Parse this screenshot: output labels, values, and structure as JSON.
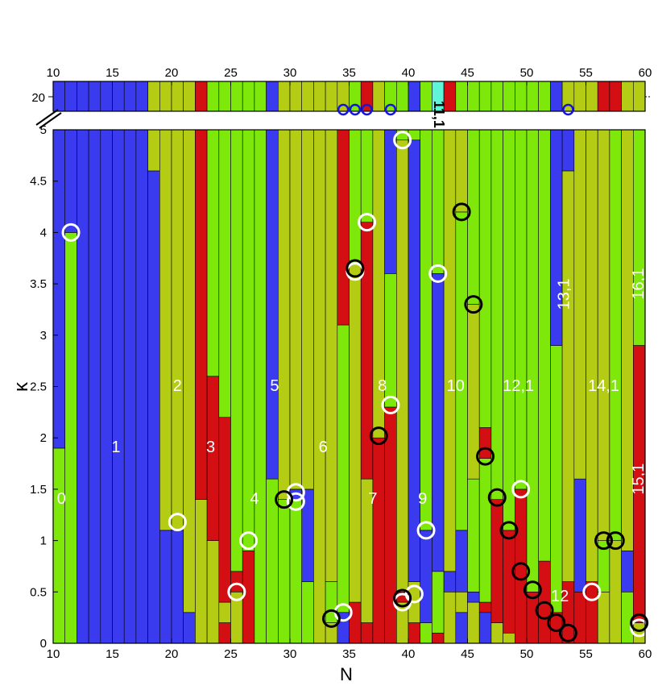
{
  "chart_data": {
    "type": "bar",
    "xlabel": "N",
    "ylabel": "κ",
    "xlim": [
      10,
      60
    ],
    "ylim": [
      0,
      5
    ],
    "top_strip_value": "20",
    "xticks": [
      "10",
      "15",
      "20",
      "25",
      "30",
      "35",
      "40",
      "45",
      "50",
      "55",
      "60"
    ],
    "yticks": [
      "0",
      "0.5",
      "1",
      "1.5",
      "2",
      "2.5",
      "3",
      "3.5",
      "4",
      "4.5",
      "5"
    ],
    "colors": {
      "blue": "#3a3aef",
      "green": "#7ee80b",
      "olive": "#b4cd14",
      "red": "#d40f14",
      "cyan": "#5ff5d8"
    },
    "bars": [
      {
        "N": 11,
        "segs": [
          [
            "green",
            1.9
          ],
          [
            "blue",
            5
          ]
        ]
      },
      {
        "N": 12,
        "segs": [
          [
            "green",
            4.0
          ],
          [
            "blue",
            5
          ]
        ]
      },
      {
        "N": 13,
        "segs": [
          [
            "blue",
            5
          ]
        ]
      },
      {
        "N": 14,
        "segs": [
          [
            "blue",
            5
          ]
        ]
      },
      {
        "N": 15,
        "segs": [
          [
            "blue",
            5
          ]
        ]
      },
      {
        "N": 16,
        "segs": [
          [
            "blue",
            5
          ]
        ]
      },
      {
        "N": 17,
        "segs": [
          [
            "blue",
            5
          ]
        ]
      },
      {
        "N": 18,
        "segs": [
          [
            "blue",
            5
          ]
        ]
      },
      {
        "N": 19,
        "segs": [
          [
            "blue",
            4.6
          ],
          [
            "olive",
            5
          ]
        ]
      },
      {
        "N": 20,
        "segs": [
          [
            "blue",
            1.1
          ],
          [
            "olive",
            5
          ]
        ]
      },
      {
        "N": 21,
        "segs": [
          [
            "blue",
            1.1
          ],
          [
            "olive",
            5
          ]
        ]
      },
      {
        "N": 22,
        "segs": [
          [
            "blue",
            0.3
          ],
          [
            "olive",
            5
          ]
        ]
      },
      {
        "N": 23,
        "segs": [
          [
            "olive",
            1.4
          ],
          [
            "red",
            5
          ]
        ]
      },
      {
        "N": 24,
        "segs": [
          [
            "olive",
            1.0
          ],
          [
            "red",
            2.6
          ],
          [
            "green",
            5
          ]
        ]
      },
      {
        "N": 25,
        "segs": [
          [
            "red",
            0.2
          ],
          [
            "olive",
            0.4
          ],
          [
            "red",
            2.2
          ],
          [
            "green",
            5
          ]
        ]
      },
      {
        "N": 26,
        "segs": [
          [
            "olive",
            0.5
          ],
          [
            "red",
            0.7
          ],
          [
            "green",
            5
          ]
        ]
      },
      {
        "N": 27,
        "segs": [
          [
            "red",
            0.9
          ],
          [
            "green",
            5
          ]
        ]
      },
      {
        "N": 28,
        "segs": [
          [
            "green",
            5
          ]
        ]
      },
      {
        "N": 29,
        "segs": [
          [
            "green",
            1.6
          ],
          [
            "blue",
            5
          ]
        ]
      },
      {
        "N": 30,
        "segs": [
          [
            "green",
            1.4
          ],
          [
            "olive",
            5
          ]
        ]
      },
      {
        "N": 31,
        "segs": [
          [
            "green",
            1.4
          ],
          [
            "blue",
            1.5
          ],
          [
            "olive",
            5
          ]
        ]
      },
      {
        "N": 32,
        "segs": [
          [
            "green",
            0.6
          ],
          [
            "blue",
            1.5
          ],
          [
            "olive",
            5
          ]
        ]
      },
      {
        "N": 33,
        "segs": [
          [
            "olive",
            5
          ]
        ]
      },
      {
        "N": 34,
        "segs": [
          [
            "olive",
            0.2
          ],
          [
            "green",
            0.6
          ],
          [
            "olive",
            5
          ]
        ]
      },
      {
        "N": 35,
        "segs": [
          [
            "blue",
            0.3
          ],
          [
            "green",
            3.1
          ],
          [
            "red",
            5
          ]
        ]
      },
      {
        "N": 36,
        "segs": [
          [
            "red",
            0.4
          ],
          [
            "olive",
            3.7
          ],
          [
            "green",
            5
          ]
        ]
      },
      {
        "N": 37,
        "segs": [
          [
            "red",
            0.2
          ],
          [
            "olive",
            1.6
          ],
          [
            "red",
            4.1
          ],
          [
            "green",
            5
          ]
        ]
      },
      {
        "N": 38,
        "segs": [
          [
            "red",
            2.0
          ],
          [
            "olive",
            5
          ]
        ]
      },
      {
        "N": 39,
        "segs": [
          [
            "red",
            2.3
          ],
          [
            "green",
            3.6
          ],
          [
            "blue",
            5
          ]
        ]
      },
      {
        "N": 40,
        "segs": [
          [
            "olive",
            0.4
          ],
          [
            "red",
            0.5
          ],
          [
            "olive",
            4.9
          ],
          [
            "green",
            5
          ]
        ]
      },
      {
        "N": 41,
        "segs": [
          [
            "red",
            0.2
          ],
          [
            "olive",
            0.6
          ],
          [
            "blue",
            4.9
          ],
          [
            "green",
            5
          ]
        ]
      },
      {
        "N": 42,
        "segs": [
          [
            "green",
            0.2
          ],
          [
            "blue",
            1.1
          ],
          [
            "green",
            5
          ]
        ]
      },
      {
        "N": 43,
        "segs": [
          [
            "red",
            0.1
          ],
          [
            "green",
            0.7
          ],
          [
            "blue",
            3.6
          ],
          [
            "green",
            5
          ]
        ]
      },
      {
        "N": 44,
        "segs": [
          [
            "olive",
            0.5
          ],
          [
            "blue",
            0.7
          ],
          [
            "olive",
            5
          ]
        ]
      },
      {
        "N": 45,
        "segs": [
          [
            "blue",
            0.3
          ],
          [
            "olive",
            0.5
          ],
          [
            "blue",
            1.1
          ],
          [
            "green",
            4.2
          ],
          [
            "olive",
            5
          ]
        ]
      },
      {
        "N": 46,
        "segs": [
          [
            "olive",
            0.4
          ],
          [
            "blue",
            0.5
          ],
          [
            "green",
            1.6
          ],
          [
            "olive",
            3.3
          ],
          [
            "red",
            3.3
          ],
          [
            "green",
            5
          ]
        ]
      },
      {
        "N": 47,
        "segs": [
          [
            "blue",
            0.3
          ],
          [
            "red",
            0.4
          ],
          [
            "green",
            1.8
          ],
          [
            "red",
            2.1
          ],
          [
            "green",
            5
          ]
        ]
      },
      {
        "N": 48,
        "segs": [
          [
            "olive",
            0.2
          ],
          [
            "red",
            1.4
          ],
          [
            "green",
            5
          ]
        ]
      },
      {
        "N": 49,
        "segs": [
          [
            "olive",
            0.1
          ],
          [
            "red",
            1.1
          ],
          [
            "green",
            5
          ]
        ]
      },
      {
        "N": 50,
        "segs": [
          [
            "red",
            1.5
          ],
          [
            "green",
            5
          ]
        ]
      },
      {
        "N": 51,
        "segs": [
          [
            "red",
            0.5
          ],
          [
            "green",
            5
          ]
        ]
      },
      {
        "N": 52,
        "segs": [
          [
            "red",
            0.8
          ],
          [
            "green",
            5
          ]
        ]
      },
      {
        "N": 53,
        "segs": [
          [
            "red",
            0.3
          ],
          [
            "green",
            2.9
          ],
          [
            "blue",
            5
          ]
        ]
      },
      {
        "N": 54,
        "segs": [
          [
            "red",
            0.6
          ],
          [
            "olive",
            4.6
          ],
          [
            "blue",
            5
          ]
        ]
      },
      {
        "N": 55,
        "segs": [
          [
            "red",
            0.5
          ],
          [
            "blue",
            1.6
          ],
          [
            "olive",
            5
          ]
        ]
      },
      {
        "N": 56,
        "segs": [
          [
            "red",
            0.6
          ],
          [
            "olive",
            5
          ]
        ]
      },
      {
        "N": 57,
        "segs": [
          [
            "olive",
            0.5
          ],
          [
            "green",
            1.0
          ],
          [
            "olive",
            5
          ]
        ]
      },
      {
        "N": 58,
        "segs": [
          [
            "olive",
            1.0
          ],
          [
            "green",
            5
          ]
        ]
      },
      {
        "N": 59,
        "segs": [
          [
            "green",
            0.5
          ],
          [
            "blue",
            0.9
          ],
          [
            "olive",
            5
          ]
        ]
      },
      {
        "N": 60,
        "segs": [
          [
            "olive",
            0.2
          ],
          [
            "red",
            2.9
          ],
          [
            "green",
            5
          ]
        ]
      }
    ],
    "top_strip": [
      {
        "N": 11,
        "c": "blue"
      },
      {
        "N": 12,
        "c": "blue"
      },
      {
        "N": 13,
        "c": "blue"
      },
      {
        "N": 14,
        "c": "blue"
      },
      {
        "N": 15,
        "c": "blue"
      },
      {
        "N": 16,
        "c": "blue"
      },
      {
        "N": 17,
        "c": "blue"
      },
      {
        "N": 18,
        "c": "blue"
      },
      {
        "N": 19,
        "c": "olive"
      },
      {
        "N": 20,
        "c": "olive"
      },
      {
        "N": 21,
        "c": "olive"
      },
      {
        "N": 22,
        "c": "olive"
      },
      {
        "N": 23,
        "c": "red"
      },
      {
        "N": 24,
        "c": "green"
      },
      {
        "N": 25,
        "c": "green"
      },
      {
        "N": 26,
        "c": "green"
      },
      {
        "N": 27,
        "c": "green"
      },
      {
        "N": 28,
        "c": "green"
      },
      {
        "N": 29,
        "c": "blue"
      },
      {
        "N": 30,
        "c": "olive"
      },
      {
        "N": 31,
        "c": "olive"
      },
      {
        "N": 32,
        "c": "olive"
      },
      {
        "N": 33,
        "c": "olive"
      },
      {
        "N": 34,
        "c": "olive"
      },
      {
        "N": 35,
        "c": "olive"
      },
      {
        "N": 36,
        "c": "green"
      },
      {
        "N": 37,
        "c": "red"
      },
      {
        "N": 38,
        "c": "olive"
      },
      {
        "N": 39,
        "c": "green"
      },
      {
        "N": 40,
        "c": "green"
      },
      {
        "N": 41,
        "c": "blue"
      },
      {
        "N": 42,
        "c": "green"
      },
      {
        "N": 43,
        "c": "cyan"
      },
      {
        "N": 44,
        "c": "red"
      },
      {
        "N": 45,
        "c": "green"
      },
      {
        "N": 46,
        "c": "green"
      },
      {
        "N": 47,
        "c": "green"
      },
      {
        "N": 48,
        "c": "green"
      },
      {
        "N": 49,
        "c": "green"
      },
      {
        "N": 50,
        "c": "green"
      },
      {
        "N": 51,
        "c": "green"
      },
      {
        "N": 52,
        "c": "green"
      },
      {
        "N": 53,
        "c": "blue"
      },
      {
        "N": 54,
        "c": "olive"
      },
      {
        "N": 55,
        "c": "olive"
      },
      {
        "N": 56,
        "c": "olive"
      },
      {
        "N": 57,
        "c": "red"
      },
      {
        "N": 58,
        "c": "red"
      },
      {
        "N": 59,
        "c": "olive"
      },
      {
        "N": 60,
        "c": "olive"
      }
    ],
    "strip_markers": [
      35,
      36,
      37,
      39,
      54
    ],
    "region_labels": [
      {
        "text": "0",
        "N": 11.2,
        "k": 1.4,
        "color": "#ffffff"
      },
      {
        "text": "1",
        "N": 15.8,
        "k": 1.9,
        "color": "#ffffff"
      },
      {
        "text": "2",
        "N": 21.0,
        "k": 2.5,
        "color": "#ffffff"
      },
      {
        "text": "3",
        "N": 23.8,
        "k": 1.9,
        "color": "#ffffff"
      },
      {
        "text": "4",
        "N": 27.5,
        "k": 1.4,
        "color": "#ffffff"
      },
      {
        "text": "5",
        "N": 29.2,
        "k": 2.5,
        "color": "#ffffff"
      },
      {
        "text": "6",
        "N": 33.3,
        "k": 1.9,
        "color": "#ffffff"
      },
      {
        "text": "7",
        "N": 37.5,
        "k": 1.4,
        "color": "#ffffff"
      },
      {
        "text": "8",
        "N": 38.3,
        "k": 2.5,
        "color": "#ffffff"
      },
      {
        "text": "9",
        "N": 41.7,
        "k": 1.4,
        "color": "#ffffff"
      },
      {
        "text": "10",
        "N": 44.5,
        "k": 2.5,
        "color": "#ffffff"
      },
      {
        "text": "12,1",
        "N": 49.8,
        "k": 2.5,
        "color": "#ffffff"
      },
      {
        "text": "14,1",
        "N": 57.0,
        "k": 2.5,
        "color": "#ffffff"
      },
      {
        "text": "12",
        "N": 53.3,
        "k": 0.45,
        "color": "#ffffff"
      },
      {
        "text": "13,1",
        "N": 53.7,
        "k": 3.4,
        "color": "#ffffff",
        "rotate": -90
      },
      {
        "text": "16,1",
        "N": 60.0,
        "k": 3.5,
        "color": "#ffffff",
        "rotate": -90
      },
      {
        "text": "15,1",
        "N": 60.0,
        "k": 1.6,
        "color": "#ffffff",
        "rotate": -90
      },
      {
        "text": "11,1",
        "N": 43.0,
        "k": 5.15,
        "color": "#000000",
        "rotate": 90
      }
    ],
    "white_circles": [
      [
        12,
        4.0
      ],
      [
        21,
        1.18
      ],
      [
        26,
        0.5
      ],
      [
        27,
        1.0
      ],
      [
        31,
        1.47
      ],
      [
        31,
        1.38
      ],
      [
        35,
        0.3
      ],
      [
        36,
        3.62
      ],
      [
        37,
        4.1
      ],
      [
        39,
        2.32
      ],
      [
        40,
        4.9
      ],
      [
        40,
        0.4
      ],
      [
        41,
        0.48
      ],
      [
        42,
        1.1
      ],
      [
        43,
        3.6
      ],
      [
        50,
        1.5
      ],
      [
        56,
        0.5
      ],
      [
        60,
        0.15
      ]
    ],
    "black_circles": [
      [
        30,
        1.4
      ],
      [
        34,
        0.24
      ],
      [
        36,
        3.65
      ],
      [
        38,
        2.02
      ],
      [
        40,
        0.44
      ],
      [
        45,
        4.2
      ],
      [
        46,
        3.3
      ],
      [
        47,
        1.82
      ],
      [
        48,
        1.42
      ],
      [
        49,
        1.1
      ],
      [
        50,
        0.7
      ],
      [
        51,
        0.52
      ],
      [
        52,
        0.32
      ],
      [
        53,
        0.2
      ],
      [
        54,
        0.1
      ],
      [
        57,
        1.0
      ],
      [
        58,
        1.0
      ],
      [
        60,
        0.2
      ]
    ]
  }
}
